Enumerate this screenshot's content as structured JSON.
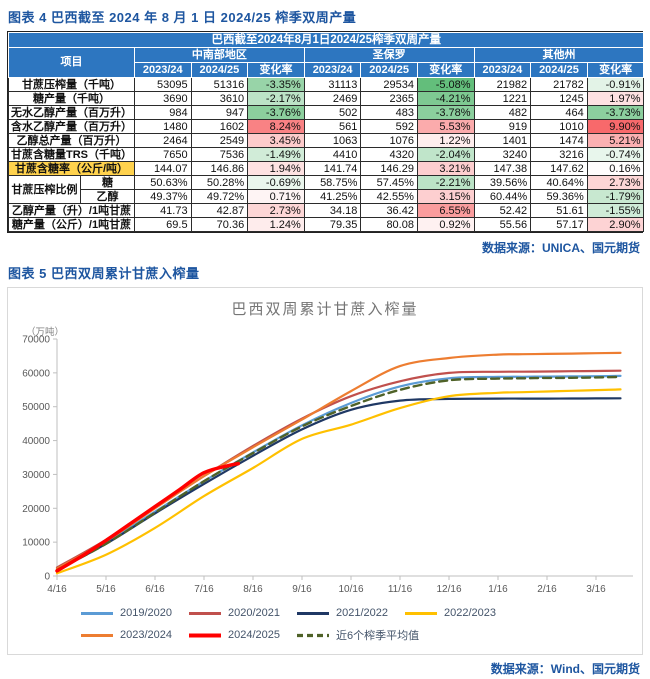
{
  "page": {
    "figure4_heading": "图表 4 巴西截至 2024 年 8 月 1 日 2024/25 榨季双周产量",
    "figure5_heading": "图表 5 巴西双周累计甘蔗入榨量",
    "table_source": "数据来源：UNICA、国元期货",
    "chart_source": "数据来源：Wind、国元期货"
  },
  "table": {
    "title": "巴西截至2024年8月1日2024/25榨季双周产量",
    "item_col_header": "项目",
    "region_groups": [
      "中南部地区",
      "圣保罗",
      "其他州"
    ],
    "sub_headers": [
      "2023/24",
      "2024/25",
      "变化率"
    ],
    "header_bg": "#2D76C0",
    "highlight_color": "#FFD24D",
    "conditional_format": {
      "positive_color": "#F8696B",
      "negative_color": "#63BE7B",
      "positive_max": 9.9,
      "negative_max": 5.08
    },
    "rows": [
      {
        "label": "甘蔗压榨量（千吨）",
        "cells": [
          "53095",
          "51316",
          "-3.35%",
          "31113",
          "29534",
          "-5.08%",
          "21982",
          "21782",
          "-0.91%"
        ]
      },
      {
        "label": "糖产量（千吨）",
        "cells": [
          "3690",
          "3610",
          "-2.17%",
          "2469",
          "2365",
          "-4.21%",
          "1221",
          "1245",
          "1.97%"
        ]
      },
      {
        "label": "无水乙醇产量（百万升）",
        "cells": [
          "984",
          "947",
          "-3.76%",
          "502",
          "483",
          "-3.78%",
          "482",
          "464",
          "-3.73%"
        ]
      },
      {
        "label": "含水乙醇产量（百万升）",
        "cells": [
          "1480",
          "1602",
          "8.24%",
          "561",
          "592",
          "5.53%",
          "919",
          "1010",
          "9.90%"
        ]
      },
      {
        "label": "乙醇总产量（百万升）",
        "cells": [
          "2464",
          "2549",
          "3.45%",
          "1063",
          "1076",
          "1.22%",
          "1401",
          "1474",
          "5.21%"
        ]
      },
      {
        "label": "甘蔗含糖量TRS（千吨）",
        "cells": [
          "7650",
          "7536",
          "-1.49%",
          "4410",
          "4320",
          "-2.04%",
          "3240",
          "3216",
          "-0.74%"
        ]
      },
      {
        "label": "甘蔗含糖率（公斤/吨）",
        "highlight": true,
        "cells": [
          "144.07",
          "146.86",
          "1.94%",
          "141.74",
          "146.29",
          "3.21%",
          "147.38",
          "147.62",
          "0.16%"
        ]
      },
      {
        "group": "甘蔗压榨比例",
        "group_rowspan": 2,
        "label": "糖",
        "cells": [
          "50.63%",
          "50.28%",
          "-0.69%",
          "58.75%",
          "57.45%",
          "-2.21%",
          "39.56%",
          "40.64%",
          "2.73%"
        ]
      },
      {
        "in_group": true,
        "label": "乙醇",
        "cells": [
          "49.37%",
          "49.72%",
          "0.71%",
          "41.25%",
          "42.55%",
          "3.15%",
          "60.44%",
          "59.36%",
          "-1.79%"
        ]
      },
      {
        "label": "乙醇产量（升）/1吨甘蔗",
        "cells": [
          "41.73",
          "42.87",
          "2.73%",
          "34.18",
          "36.42",
          "6.55%",
          "52.42",
          "51.61",
          "-1.55%"
        ]
      },
      {
        "label": "糖产量（公斤）/1吨甘蔗",
        "cells": [
          "69.5",
          "70.36",
          "1.24%",
          "79.35",
          "80.08",
          "0.92%",
          "55.56",
          "57.17",
          "2.90%"
        ]
      }
    ]
  },
  "chart_data": {
    "type": "line",
    "title": "巴西双周累计甘蔗入榨量",
    "unit_label": "（万吨）",
    "ylabel": "万吨",
    "ylim": [
      0,
      70000
    ],
    "y_ticks": [
      0,
      10000,
      20000,
      30000,
      40000,
      50000,
      60000,
      70000
    ],
    "x_tick_labels": [
      "4/16",
      "5/16",
      "6/16",
      "7/16",
      "8/16",
      "9/16",
      "10/16",
      "11/16",
      "12/16",
      "1/16",
      "2/16",
      "3/16"
    ],
    "grid": false,
    "legend_position": "bottom",
    "legend_row_chunks": [
      4,
      3
    ],
    "default_x": [
      0,
      1,
      2,
      3,
      4,
      5,
      6,
      7,
      8,
      9,
      9.5,
      10,
      10.5,
      11,
      11.5
    ],
    "series": [
      {
        "name": "2019/2020",
        "color": "#5B9BD5",
        "dash": false,
        "width": 2.2,
        "values": [
          1800,
          9800,
          19000,
          28000,
          36500,
          44500,
          51100,
          56000,
          58400,
          58800,
          58850,
          58900,
          58950,
          59000,
          59100
        ]
      },
      {
        "name": "2020/2021",
        "color": "#C0504D",
        "dash": false,
        "width": 2.2,
        "values": [
          2500,
          10700,
          20100,
          29500,
          38400,
          46500,
          53100,
          57500,
          60000,
          60300,
          60350,
          60400,
          60480,
          60550,
          60650
        ]
      },
      {
        "name": "2021/2022",
        "color": "#1F3864",
        "dash": false,
        "width": 2.2,
        "values": [
          1700,
          9500,
          18500,
          27200,
          35500,
          43300,
          49100,
          51800,
          52300,
          52400,
          52400,
          52400,
          52430,
          52450,
          52500
        ]
      },
      {
        "name": "2022/2023",
        "color": "#FFC000",
        "dash": false,
        "width": 2.2,
        "values": [
          800,
          6300,
          14200,
          23600,
          31900,
          40500,
          44700,
          49600,
          53100,
          54100,
          54300,
          54500,
          54700,
          54900,
          55100
        ]
      },
      {
        "name": "2023/2024",
        "color": "#ED7D31",
        "dash": false,
        "width": 2.2,
        "values": [
          2200,
          10300,
          20000,
          29500,
          38000,
          46200,
          54600,
          62000,
          64400,
          65400,
          65500,
          65600,
          65700,
          65800,
          65900
        ]
      },
      {
        "name": "2024/2025",
        "color": "#FF0000",
        "dash": false,
        "width": 3.5,
        "x": [
          0,
          0.5,
          1,
          1.5,
          2,
          2.5,
          3,
          3.5,
          3.7
        ],
        "values": [
          1500,
          5800,
          10500,
          15500,
          20500,
          25500,
          30500,
          32600,
          33200
        ]
      },
      {
        "name": "近6个榨季平均值",
        "color": "#4F6228",
        "dash": true,
        "width": 2.4,
        "values": [
          1750,
          9500,
          18700,
          28000,
          36300,
          44200,
          50200,
          55000,
          57800,
          58300,
          58400,
          58500,
          58550,
          58650,
          58800
        ]
      }
    ]
  }
}
